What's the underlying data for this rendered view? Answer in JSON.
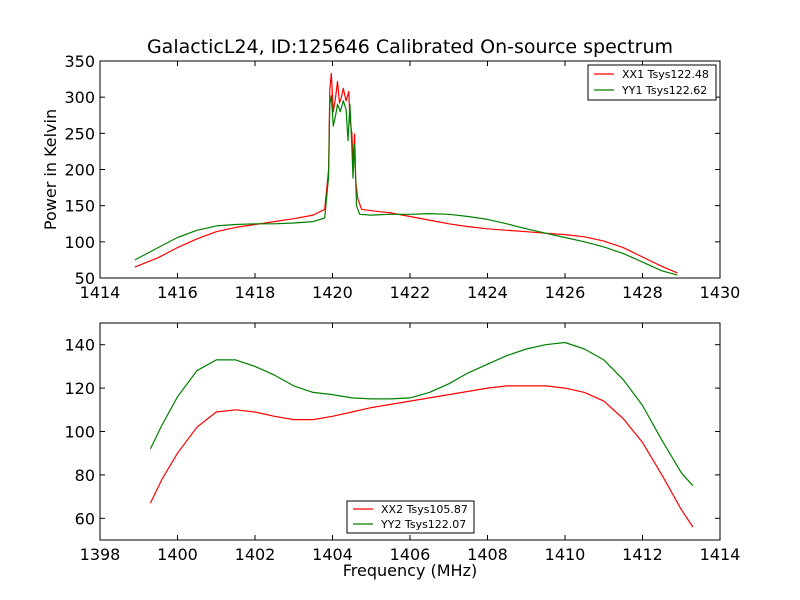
{
  "title": "GalacticL24, ID:125646 Calibrated On-source spectrum",
  "chart_data": [
    {
      "type": "line",
      "ylabel": "Power in Kelvin",
      "xlabel": "",
      "xlim": [
        1414,
        1430
      ],
      "ylim": [
        50,
        350
      ],
      "xticks": [
        "1414",
        "1416",
        "1418",
        "1420",
        "1422",
        "1424",
        "1426",
        "1428",
        "1430"
      ],
      "yticks": [
        "50",
        "100",
        "150",
        "200",
        "250",
        "300",
        "350"
      ],
      "legend": "top-right",
      "series": [
        {
          "name": "XX1 Tsys122.48",
          "color": "#ff0000",
          "points": [
            [
              1414.9,
              65
            ],
            [
              1415.5,
              78
            ],
            [
              1416.0,
              92
            ],
            [
              1416.5,
              104
            ],
            [
              1417.0,
              114
            ],
            [
              1417.5,
              120
            ],
            [
              1418.0,
              124
            ],
            [
              1418.5,
              128
            ],
            [
              1419.0,
              132
            ],
            [
              1419.5,
              137
            ],
            [
              1419.8,
              145
            ],
            [
              1419.9,
              200
            ],
            [
              1419.93,
              310
            ],
            [
              1419.97,
              333
            ],
            [
              1420.02,
              280
            ],
            [
              1420.08,
              300
            ],
            [
              1420.13,
              322
            ],
            [
              1420.18,
              292
            ],
            [
              1420.23,
              300
            ],
            [
              1420.28,
              312
            ],
            [
              1420.35,
              295
            ],
            [
              1420.42,
              308
            ],
            [
              1420.45,
              268
            ],
            [
              1420.5,
              250
            ],
            [
              1420.53,
              210
            ],
            [
              1420.57,
              249
            ],
            [
              1420.6,
              185
            ],
            [
              1420.65,
              160
            ],
            [
              1420.75,
              145
            ],
            [
              1421.0,
              143
            ],
            [
              1421.5,
              140
            ],
            [
              1422.0,
              135
            ],
            [
              1422.5,
              130
            ],
            [
              1423.0,
              125
            ],
            [
              1423.5,
              121
            ],
            [
              1424.0,
              118
            ],
            [
              1424.5,
              116
            ],
            [
              1425.0,
              114
            ],
            [
              1425.5,
              112
            ],
            [
              1426.0,
              110
            ],
            [
              1426.5,
              107
            ],
            [
              1427.0,
              101
            ],
            [
              1427.5,
              92
            ],
            [
              1428.0,
              79
            ],
            [
              1428.5,
              66
            ],
            [
              1428.9,
              57
            ]
          ]
        },
        {
          "name": "YY1 Tsys122.62",
          "color": "#008000",
          "points": [
            [
              1414.9,
              75
            ],
            [
              1415.5,
              92
            ],
            [
              1416.0,
              106
            ],
            [
              1416.5,
              116
            ],
            [
              1417.0,
              122
            ],
            [
              1417.5,
              124
            ],
            [
              1418.0,
              125
            ],
            [
              1418.5,
              125
            ],
            [
              1419.0,
              126
            ],
            [
              1419.5,
              128
            ],
            [
              1419.8,
              133
            ],
            [
              1419.9,
              190
            ],
            [
              1419.93,
              290
            ],
            [
              1419.97,
              302
            ],
            [
              1420.02,
              260
            ],
            [
              1420.08,
              275
            ],
            [
              1420.13,
              290
            ],
            [
              1420.2,
              280
            ],
            [
              1420.28,
              295
            ],
            [
              1420.35,
              283
            ],
            [
              1420.4,
              240
            ],
            [
              1420.45,
              290
            ],
            [
              1420.5,
              230
            ],
            [
              1420.53,
              188
            ],
            [
              1420.57,
              235
            ],
            [
              1420.62,
              150
            ],
            [
              1420.7,
              138
            ],
            [
              1421.0,
              137
            ],
            [
              1421.5,
              138
            ],
            [
              1422.0,
              138
            ],
            [
              1422.5,
              139
            ],
            [
              1423.0,
              138
            ],
            [
              1423.5,
              135
            ],
            [
              1424.0,
              131
            ],
            [
              1424.5,
              125
            ],
            [
              1425.0,
              118
            ],
            [
              1425.5,
              112
            ],
            [
              1426.0,
              106
            ],
            [
              1426.5,
              100
            ],
            [
              1427.0,
              93
            ],
            [
              1427.5,
              84
            ],
            [
              1428.0,
              72
            ],
            [
              1428.5,
              60
            ],
            [
              1428.9,
              54
            ]
          ]
        }
      ]
    },
    {
      "type": "line",
      "xlabel": "Frequency (MHz)",
      "ylabel": "",
      "xlim": [
        1398,
        1414
      ],
      "ylim": [
        50,
        150
      ],
      "xticks": [
        "1398",
        "1400",
        "1402",
        "1404",
        "1406",
        "1408",
        "1410",
        "1412",
        "1414"
      ],
      "yticks": [
        "60",
        "80",
        "100",
        "120",
        "140"
      ],
      "legend": "bottom-center",
      "series": [
        {
          "name": "XX2 Tsys105.87",
          "color": "#ff0000",
          "points": [
            [
              1399.3,
              67
            ],
            [
              1399.6,
              78
            ],
            [
              1400.0,
              90
            ],
            [
              1400.5,
              102
            ],
            [
              1401.0,
              109
            ],
            [
              1401.5,
              110
            ],
            [
              1402.0,
              109
            ],
            [
              1402.5,
              107
            ],
            [
              1403.0,
              105.5
            ],
            [
              1403.5,
              105.5
            ],
            [
              1404.0,
              107
            ],
            [
              1404.5,
              109
            ],
            [
              1405.0,
              111
            ],
            [
              1405.5,
              112.5
            ],
            [
              1406.0,
              114
            ],
            [
              1406.5,
              115.5
            ],
            [
              1407.0,
              117
            ],
            [
              1407.5,
              118.5
            ],
            [
              1408.0,
              120
            ],
            [
              1408.5,
              121
            ],
            [
              1409.0,
              121
            ],
            [
              1409.5,
              121
            ],
            [
              1410.0,
              120
            ],
            [
              1410.5,
              118
            ],
            [
              1411.0,
              114
            ],
            [
              1411.5,
              106
            ],
            [
              1412.0,
              95
            ],
            [
              1412.5,
              80
            ],
            [
              1413.0,
              64
            ],
            [
              1413.3,
              56
            ]
          ]
        },
        {
          "name": "YY2 Tsys122.07",
          "color": "#008000",
          "points": [
            [
              1399.3,
              92
            ],
            [
              1399.6,
              103
            ],
            [
              1400.0,
              116
            ],
            [
              1400.5,
              128
            ],
            [
              1401.0,
              133
            ],
            [
              1401.5,
              133
            ],
            [
              1402.0,
              130
            ],
            [
              1402.5,
              126
            ],
            [
              1403.0,
              121
            ],
            [
              1403.5,
              118
            ],
            [
              1404.0,
              117
            ],
            [
              1404.5,
              115.5
            ],
            [
              1405.0,
              115
            ],
            [
              1405.5,
              115
            ],
            [
              1406.0,
              115.5
            ],
            [
              1406.5,
              118
            ],
            [
              1407.0,
              122
            ],
            [
              1407.5,
              127
            ],
            [
              1408.0,
              131
            ],
            [
              1408.5,
              135
            ],
            [
              1409.0,
              138
            ],
            [
              1409.5,
              140
            ],
            [
              1410.0,
              141
            ],
            [
              1410.5,
              138
            ],
            [
              1411.0,
              133
            ],
            [
              1411.5,
              124
            ],
            [
              1412.0,
              112
            ],
            [
              1412.5,
              96
            ],
            [
              1413.0,
              81
            ],
            [
              1413.3,
              75
            ]
          ]
        }
      ]
    }
  ]
}
